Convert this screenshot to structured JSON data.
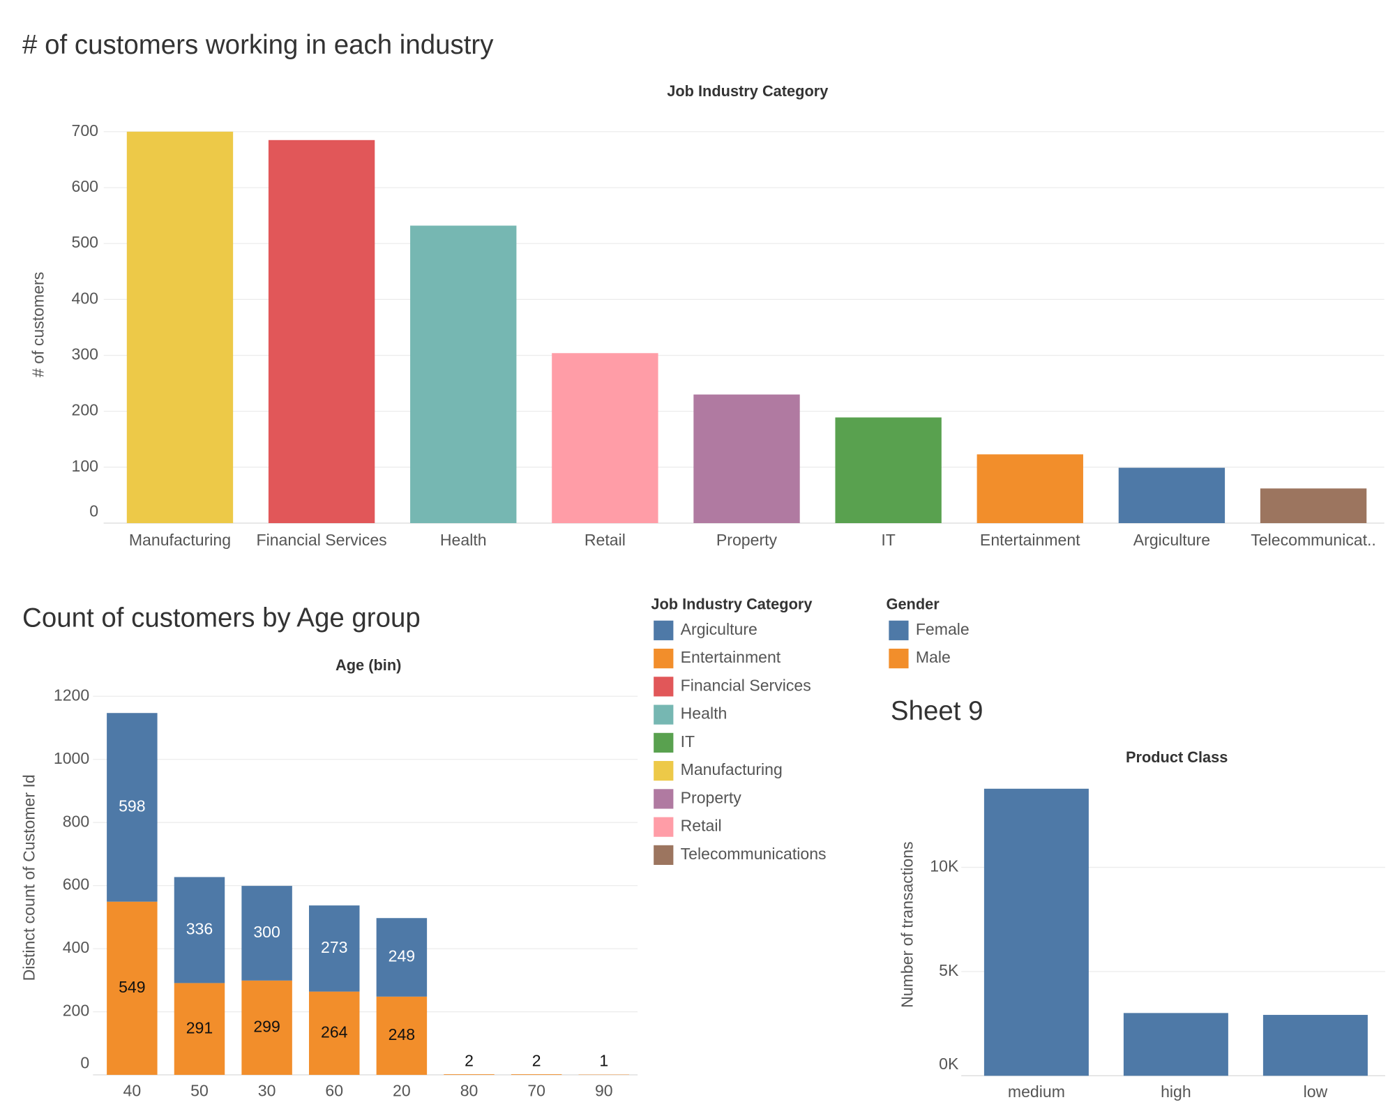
{
  "chart_data": [
    {
      "type": "bar",
      "title": "# of customers working in each industry",
      "x_label": "Job Industry Category",
      "y_label": "# of customers",
      "categories": [
        "Manufacturing",
        "Financial Services",
        "Health",
        "Retail",
        "Property",
        "IT",
        "Entertainment",
        "Argiculture",
        "Telecommunicat.."
      ],
      "values": [
        700,
        685,
        532,
        304,
        230,
        189,
        123,
        99,
        62
      ],
      "colors": [
        "#edc948",
        "#e15759",
        "#76b7b2",
        "#ff9da7",
        "#b07aa1",
        "#59a14f",
        "#f28e2b",
        "#4e79a7",
        "#9c755f"
      ],
      "ylim": [
        0,
        710
      ],
      "yticks": [
        0,
        100,
        200,
        300,
        400,
        500,
        600,
        700
      ],
      "grid": true,
      "legend": {
        "title": "Job Industry Category",
        "items": [
          {
            "name": "Argiculture",
            "color": "#4e79a7"
          },
          {
            "name": "Entertainment",
            "color": "#f28e2b"
          },
          {
            "name": "Financial Services",
            "color": "#e15759"
          },
          {
            "name": "Health",
            "color": "#76b7b2"
          },
          {
            "name": "IT",
            "color": "#59a14f"
          },
          {
            "name": "Manufacturing",
            "color": "#edc948"
          },
          {
            "name": "Property",
            "color": "#b07aa1"
          },
          {
            "name": "Retail",
            "color": "#ff9da7"
          },
          {
            "name": "Telecommunications",
            "color": "#9c755f"
          }
        ]
      }
    },
    {
      "type": "stacked_bar",
      "title": "Count of customers by Age group",
      "x_label": "Age (bin)",
      "y_label": "Distinct count of Customer Id",
      "categories": [
        "40",
        "50",
        "30",
        "60",
        "20",
        "80",
        "70",
        "90"
      ],
      "series": [
        {
          "name": "Female",
          "color": "#4e79a7",
          "values": [
            598,
            336,
            300,
            273,
            249,
            null,
            null,
            null
          ]
        },
        {
          "name": "Male",
          "color": "#f28e2b",
          "values": [
            549,
            291,
            299,
            264,
            248,
            2,
            2,
            1
          ]
        }
      ],
      "ylim": [
        0,
        1250
      ],
      "yticks": [
        0,
        200,
        400,
        600,
        800,
        1000,
        1200
      ],
      "grid": true,
      "legend_title": "Gender"
    },
    {
      "type": "bar",
      "title": "Sheet 9",
      "x_label": "Product Class",
      "y_label": "Number of transactions",
      "categories": [
        "medium",
        "high",
        "low"
      ],
      "values": [
        13770,
        3010,
        2920
      ],
      "color": "#4e79a7",
      "ylim": [
        0,
        14500
      ],
      "yticks": [
        {
          "value": 0,
          "label": "0K"
        },
        {
          "value": 5000,
          "label": "5K"
        },
        {
          "value": 10000,
          "label": "10K"
        }
      ],
      "grid": true
    }
  ]
}
